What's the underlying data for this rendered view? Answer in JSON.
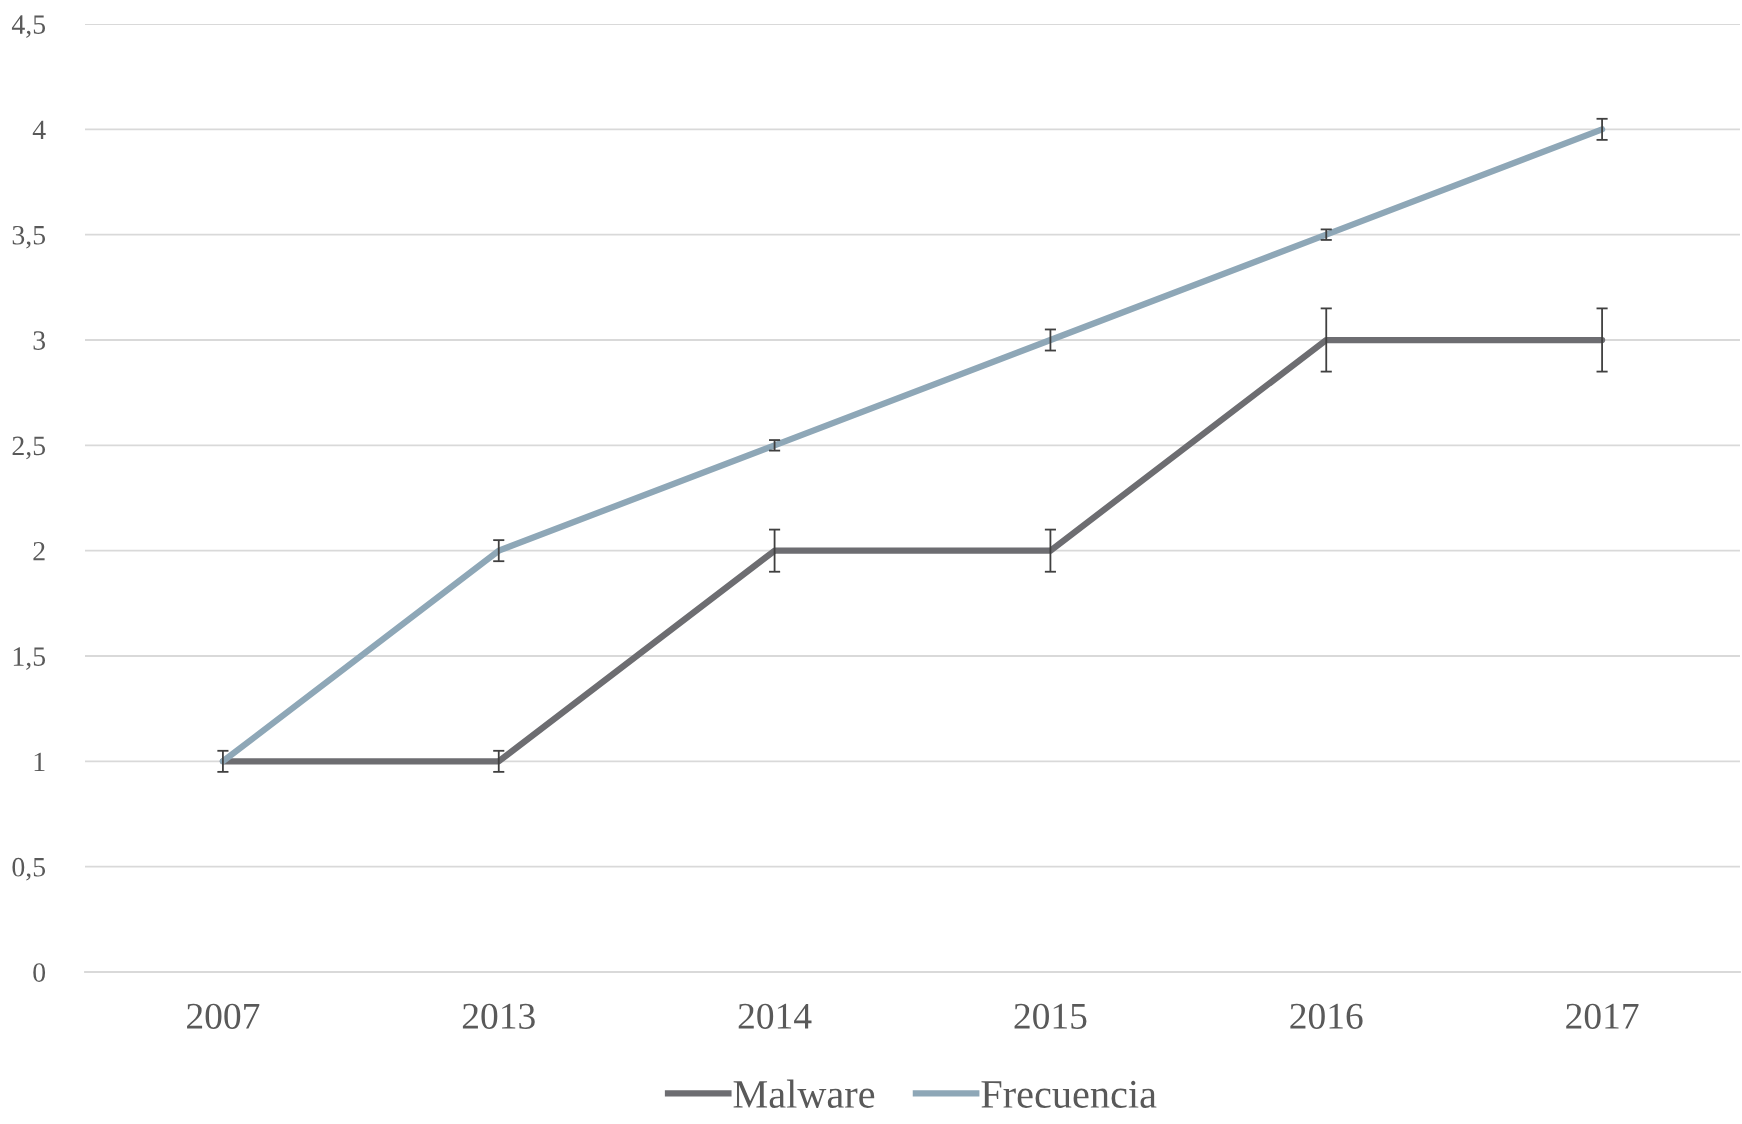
{
  "chart_data": {
    "type": "line",
    "categories": [
      "2007",
      "2013",
      "2014",
      "2015",
      "2016",
      "2017"
    ],
    "series": [
      {
        "name": "Malware",
        "color": "#6d6d71",
        "values": [
          1,
          1,
          2,
          2,
          3,
          3
        ],
        "errors": [
          0.05,
          0.05,
          0.1,
          0.1,
          0.15,
          0.15
        ]
      },
      {
        "name": "Frecuencia",
        "color": "#8ea7b7",
        "values": [
          1,
          2,
          2.5,
          3,
          3.5,
          4
        ],
        "errors": [
          null,
          0.05,
          0.025,
          0.05,
          0.025,
          0.05
        ]
      }
    ],
    "ylim": [
      0,
      4.5
    ],
    "yticks": [
      0,
      {
        "value": 0.5,
        "label": "0,5"
      },
      1,
      {
        "value": 1.5,
        "label": "1,5"
      },
      2,
      {
        "value": 2.5,
        "label": "2,5"
      },
      3,
      {
        "value": 3.5,
        "label": "3,5"
      },
      4,
      {
        "value": 4.5,
        "label": "4,5"
      }
    ],
    "grid": "y",
    "legend": "bottom",
    "marker": "none",
    "line_style": "solid"
  }
}
